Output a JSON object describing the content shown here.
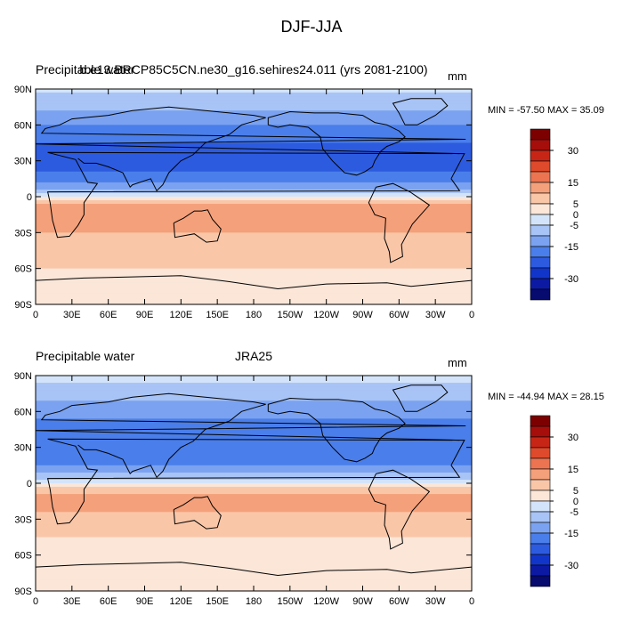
{
  "title": "DJF-JJA",
  "colors": {
    "levels": [
      "#070a6e",
      "#0c1aa3",
      "#1235c9",
      "#2d5be0",
      "#4a7eea",
      "#7aa2f0",
      "#a8c3f5",
      "#d3e4fa",
      "#fbe6d8",
      "#f9c6a8",
      "#f4a07a",
      "#ec7451",
      "#de4a2b",
      "#c72616",
      "#a60e0b",
      "#7c0000"
    ]
  },
  "chart_data": [
    {
      "type": "heatmap",
      "left_label": "Precipitable water",
      "center_label": "b.e13.BRCP85C5CN.ne30_g16.sehires24.011 (yrs 2081-2100)",
      "units": "mm",
      "stats": "MIN = -57.50 MAX =  35.09",
      "min": -57.5,
      "max": 35.09,
      "x_tick_labels": [
        "0",
        "30E",
        "60E",
        "90E",
        "120E",
        "150E",
        "180",
        "150W",
        "120W",
        "90W",
        "60W",
        "30W",
        "0"
      ],
      "y_tick_labels": [
        "90N",
        "60N",
        "30N",
        "0",
        "30S",
        "60S",
        "90S"
      ],
      "xlim": [
        0,
        360
      ],
      "ylim": [
        -90,
        90
      ],
      "colorbar_levels": [
        -35,
        -30,
        -25,
        -20,
        -15,
        -10,
        -5,
        0,
        5,
        10,
        15,
        20,
        25,
        30,
        35
      ],
      "colorbar_tick_labels": [
        "30",
        "15",
        "5",
        "0",
        "-5",
        "-15",
        "-30"
      ],
      "zonal_mean_mm": [
        {
          "lat": 90,
          "value": -4
        },
        {
          "lat": 75,
          "value": -8
        },
        {
          "lat": 60,
          "value": -15
        },
        {
          "lat": 45,
          "value": -20
        },
        {
          "lat": 30,
          "value": -22
        },
        {
          "lat": 15,
          "value": -18
        },
        {
          "lat": 5,
          "value": -8
        },
        {
          "lat": 0,
          "value": 2
        },
        {
          "lat": -10,
          "value": 14
        },
        {
          "lat": -20,
          "value": 15
        },
        {
          "lat": -30,
          "value": 10
        },
        {
          "lat": -45,
          "value": 7
        },
        {
          "lat": -60,
          "value": 5
        },
        {
          "lat": -75,
          "value": 2
        },
        {
          "lat": -90,
          "value": 1
        }
      ]
    },
    {
      "type": "heatmap",
      "left_label": "Precipitable water",
      "center_label": "JRA25",
      "units": "mm",
      "stats": "MIN = -44.94 MAX =  28.15",
      "min": -44.94,
      "max": 28.15,
      "x_tick_labels": [
        "0",
        "30E",
        "60E",
        "90E",
        "120E",
        "150E",
        "180",
        "150W",
        "120W",
        "90W",
        "60W",
        "30W",
        "0"
      ],
      "y_tick_labels": [
        "90N",
        "60N",
        "30N",
        "0",
        "30S",
        "60S",
        "90S"
      ],
      "xlim": [
        0,
        360
      ],
      "ylim": [
        -90,
        90
      ],
      "colorbar_levels": [
        -35,
        -30,
        -25,
        -20,
        -15,
        -10,
        -5,
        0,
        5,
        10,
        15,
        20,
        25,
        30,
        35
      ],
      "colorbar_tick_labels": [
        "30",
        "15",
        "5",
        "0",
        "-5",
        "-15",
        "-30"
      ],
      "zonal_mean_mm": [
        {
          "lat": 90,
          "value": -4
        },
        {
          "lat": 75,
          "value": -7
        },
        {
          "lat": 60,
          "value": -13
        },
        {
          "lat": 45,
          "value": -17
        },
        {
          "lat": 30,
          "value": -18
        },
        {
          "lat": 15,
          "value": -15
        },
        {
          "lat": 5,
          "value": -7
        },
        {
          "lat": 0,
          "value": 2
        },
        {
          "lat": -10,
          "value": 11
        },
        {
          "lat": -20,
          "value": 12
        },
        {
          "lat": -30,
          "value": 8
        },
        {
          "lat": -45,
          "value": 5
        },
        {
          "lat": -60,
          "value": 3
        },
        {
          "lat": -75,
          "value": 1
        },
        {
          "lat": -90,
          "value": 1
        }
      ]
    }
  ]
}
